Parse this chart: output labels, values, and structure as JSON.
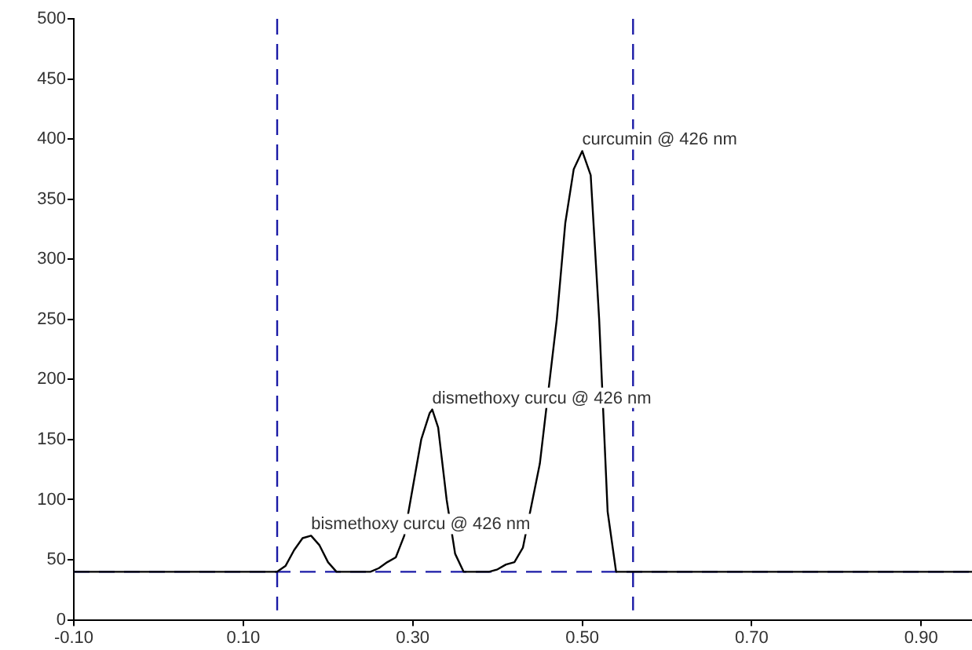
{
  "chart_data": {
    "type": "line",
    "x": [
      -0.1,
      0.14,
      0.15,
      0.16,
      0.17,
      0.18,
      0.19,
      0.2,
      0.21,
      0.25,
      0.26,
      0.27,
      0.28,
      0.29,
      0.3,
      0.31,
      0.32,
      0.323,
      0.33,
      0.34,
      0.35,
      0.36,
      0.37,
      0.39,
      0.4,
      0.41,
      0.42,
      0.43,
      0.45,
      0.47,
      0.48,
      0.49,
      0.5,
      0.51,
      0.52,
      0.53,
      0.54,
      0.96
    ],
    "series": [
      {
        "color": "#000000",
        "values": [
          40,
          40,
          45,
          58,
          68,
          70,
          62,
          48,
          40,
          40,
          43,
          48,
          52,
          70,
          110,
          150,
          172,
          175,
          160,
          100,
          55,
          40,
          40,
          40,
          42,
          46,
          48,
          60,
          130,
          250,
          330,
          375,
          390,
          370,
          250,
          90,
          40,
          40
        ]
      }
    ],
    "xlim": [
      -0.1,
      0.96
    ],
    "xticks": [
      {
        "value": -0.1,
        "label": "-0.10"
      },
      {
        "value": 0.1,
        "label": "0.10"
      },
      {
        "value": 0.3,
        "label": "0.30"
      },
      {
        "value": 0.5,
        "label": "0.50"
      },
      {
        "value": 0.7,
        "label": "0.70"
      },
      {
        "value": 0.9,
        "label": "0.90"
      }
    ],
    "ylim": [
      0,
      500
    ],
    "yticks": [
      0,
      50,
      100,
      150,
      200,
      250,
      300,
      350,
      400,
      450,
      500
    ],
    "ref_lines": [
      {
        "axis": "x",
        "value": 0.14,
        "color": "#1a1aa6",
        "line_style": "dashed"
      },
      {
        "axis": "x",
        "value": 0.56,
        "color": "#1a1aa6",
        "line_style": "dashed"
      },
      {
        "axis": "y",
        "value": 40,
        "color": "#1a1aa6",
        "line_style": "dashed"
      }
    ],
    "annotations": [
      {
        "text": "curcumin @ 426 nm",
        "x": 0.5,
        "y": 390
      },
      {
        "text": "dismethoxy curcu @ 426 nm",
        "x": 0.323,
        "y": 175
      },
      {
        "text": "bismethoxy curcu @ 426 nm",
        "x": 0.18,
        "y": 70
      }
    ],
    "grid": false,
    "legend": false,
    "marker": "none",
    "line_style": "solid"
  }
}
